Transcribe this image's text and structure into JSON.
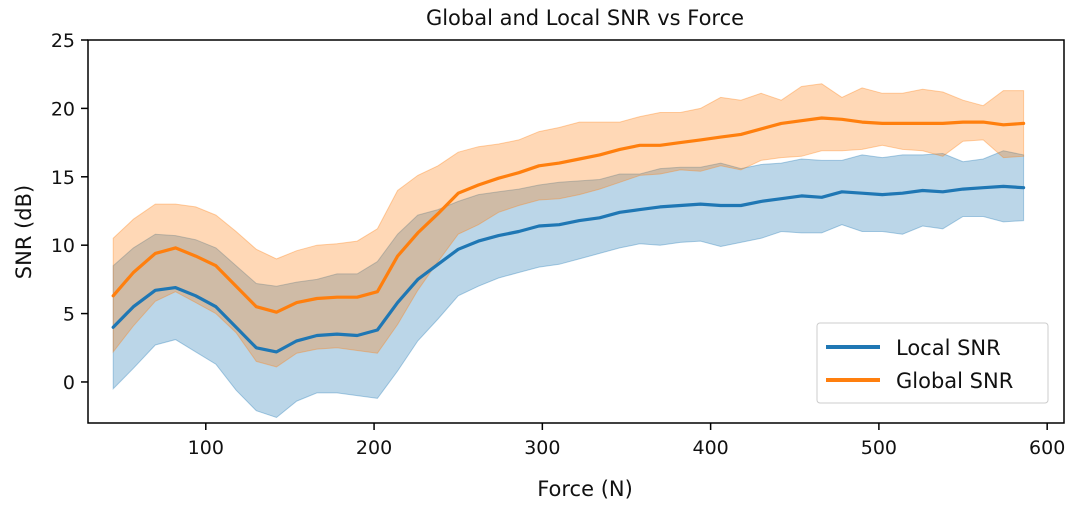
{
  "chart_data": {
    "type": "line",
    "title": "Global and Local SNR vs Force",
    "xlabel": "Force (N)",
    "ylabel": "SNR (dB)",
    "xlim": [
      30,
      610
    ],
    "ylim": [
      -3,
      25
    ],
    "xticks": [
      100,
      200,
      300,
      400,
      500,
      600
    ],
    "yticks": [
      0,
      5,
      10,
      15,
      20,
      25
    ],
    "grid": false,
    "legend_position": "lower-right",
    "series": [
      {
        "name": "Local SNR",
        "color": "#1f77b4",
        "x": [
          45,
          57,
          70,
          82,
          94,
          106,
          118,
          130,
          142,
          154,
          166,
          178,
          190,
          202,
          214,
          226,
          238,
          250,
          262,
          274,
          286,
          298,
          310,
          322,
          334,
          346,
          358,
          370,
          382,
          394,
          406,
          418,
          430,
          442,
          454,
          466,
          478,
          490,
          502,
          514,
          526,
          538,
          550,
          562,
          574,
          586
        ],
        "values": [
          4.0,
          5.5,
          6.7,
          6.9,
          6.3,
          5.5,
          4.0,
          2.5,
          2.2,
          3.0,
          3.4,
          3.5,
          3.4,
          3.8,
          5.8,
          7.5,
          8.6,
          9.7,
          10.3,
          10.7,
          11.0,
          11.4,
          11.5,
          11.8,
          12.0,
          12.4,
          12.6,
          12.8,
          12.9,
          13.0,
          12.9,
          12.9,
          13.2,
          13.4,
          13.6,
          13.5,
          13.9,
          13.8,
          13.7,
          13.8,
          14.0,
          13.9,
          14.1,
          14.2,
          14.3,
          14.2
        ],
        "lower": [
          -0.5,
          1.0,
          2.7,
          3.1,
          2.2,
          1.3,
          -0.6,
          -2.1,
          -2.6,
          -1.4,
          -0.8,
          -0.8,
          -1.0,
          -1.2,
          0.8,
          3.0,
          4.6,
          6.3,
          7.0,
          7.6,
          8.0,
          8.4,
          8.6,
          9.0,
          9.4,
          9.8,
          10.1,
          10.0,
          10.2,
          10.3,
          9.9,
          10.2,
          10.5,
          11.0,
          10.9,
          10.9,
          11.5,
          11.0,
          11.0,
          10.8,
          11.4,
          11.2,
          12.1,
          12.1,
          11.7,
          11.8
        ],
        "upper": [
          8.5,
          9.8,
          10.8,
          10.7,
          10.4,
          9.8,
          8.5,
          7.2,
          7.0,
          7.3,
          7.5,
          7.9,
          7.9,
          8.8,
          10.8,
          12.2,
          12.6,
          13.2,
          13.7,
          13.9,
          14.1,
          14.4,
          14.6,
          14.7,
          14.8,
          15.2,
          15.2,
          15.6,
          15.7,
          15.7,
          16.0,
          15.6,
          15.9,
          16.0,
          16.3,
          16.2,
          16.2,
          16.6,
          16.4,
          16.6,
          16.6,
          16.7,
          16.1,
          16.3,
          16.9,
          16.6
        ]
      },
      {
        "name": "Global SNR",
        "color": "#ff7f0e",
        "x": [
          45,
          57,
          70,
          82,
          94,
          106,
          118,
          130,
          142,
          154,
          166,
          178,
          190,
          202,
          214,
          226,
          238,
          250,
          262,
          274,
          286,
          298,
          310,
          322,
          334,
          346,
          358,
          370,
          382,
          394,
          406,
          418,
          430,
          442,
          454,
          466,
          478,
          490,
          502,
          514,
          526,
          538,
          550,
          562,
          574,
          586
        ],
        "values": [
          6.3,
          8.0,
          9.4,
          9.8,
          9.2,
          8.5,
          7.0,
          5.5,
          5.1,
          5.8,
          6.1,
          6.2,
          6.2,
          6.6,
          9.2,
          10.9,
          12.3,
          13.8,
          14.4,
          14.9,
          15.3,
          15.8,
          16.0,
          16.3,
          16.6,
          17.0,
          17.3,
          17.3,
          17.5,
          17.7,
          17.9,
          18.1,
          18.5,
          18.9,
          19.1,
          19.3,
          19.2,
          19.0,
          18.9,
          18.9,
          18.9,
          18.9,
          19.0,
          19.0,
          18.8,
          18.9
        ],
        "lower": [
          2.2,
          4.1,
          5.9,
          6.6,
          5.8,
          5.0,
          3.6,
          1.5,
          1.1,
          2.1,
          2.4,
          2.5,
          2.3,
          2.1,
          4.2,
          6.7,
          8.8,
          10.8,
          11.5,
          12.4,
          12.9,
          13.3,
          13.4,
          13.7,
          14.1,
          14.6,
          15.1,
          15.2,
          15.5,
          15.4,
          15.8,
          15.5,
          16.2,
          16.4,
          16.5,
          16.9,
          16.9,
          17.0,
          17.3,
          17.0,
          16.9,
          16.5,
          17.6,
          17.7,
          16.4,
          16.5
        ],
        "upper": [
          10.5,
          11.9,
          13.0,
          13.0,
          12.8,
          12.2,
          11.0,
          9.7,
          9.0,
          9.6,
          10.0,
          10.1,
          10.3,
          11.2,
          14.0,
          15.1,
          15.8,
          16.8,
          17.2,
          17.4,
          17.7,
          18.3,
          18.6,
          19.0,
          19.0,
          19.0,
          19.4,
          19.7,
          19.7,
          20.0,
          20.8,
          20.6,
          21.1,
          20.6,
          21.6,
          21.8,
          20.8,
          21.5,
          21.1,
          21.1,
          21.4,
          21.2,
          20.6,
          20.2,
          21.3,
          21.3
        ]
      }
    ]
  }
}
